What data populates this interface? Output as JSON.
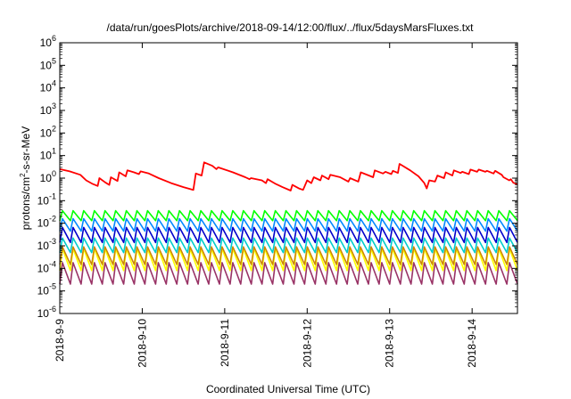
{
  "chart_data": {
    "type": "line",
    "title": "/data/run/goesPlots/archive/2018-09-14/12:00/flux/../flux/5daysMarsFluxes.txt",
    "xlabel": "Coordinated Universal Time (UTC)",
    "ylabel_main": "protons/cm",
    "ylabel_sup": "2",
    "ylabel_rest": "-s-sr-MeV",
    "ylabel": "protons/cm2-s-sr-MeV",
    "yscale": "log",
    "ylim": [
      1e-06,
      1000000.0
    ],
    "yticks": [
      {
        "base": "10",
        "exp": "-6",
        "value": 1e-06
      },
      {
        "base": "10",
        "exp": "-5",
        "value": 1e-05
      },
      {
        "base": "10",
        "exp": "-4",
        "value": 0.0001
      },
      {
        "base": "10",
        "exp": "-3",
        "value": 0.001
      },
      {
        "base": "10",
        "exp": "-2",
        "value": 0.01
      },
      {
        "base": "10",
        "exp": "-1",
        "value": 0.1
      },
      {
        "base": "10",
        "exp": "0",
        "value": 1
      },
      {
        "base": "10",
        "exp": "1",
        "value": 10
      },
      {
        "base": "10",
        "exp": "2",
        "value": 100
      },
      {
        "base": "10",
        "exp": "3",
        "value": 1000
      },
      {
        "base": "10",
        "exp": "4",
        "value": 10000
      },
      {
        "base": "10",
        "exp": "5",
        "value": 100000
      },
      {
        "base": "10",
        "exp": "6",
        "value": 1000000
      }
    ],
    "xlim_days": [
      0,
      5.55
    ],
    "xticks": [
      {
        "label": "2018-9-9",
        "day": 0
      },
      {
        "label": "2018-9-10",
        "day": 1
      },
      {
        "label": "2018-9-11",
        "day": 2
      },
      {
        "label": "2018-9-12",
        "day": 3
      },
      {
        "label": "2018-9-13",
        "day": 4
      },
      {
        "label": "2018-9-14",
        "day": 5
      }
    ],
    "grid": false,
    "legend": "none",
    "series": [
      {
        "color": "#ff0000",
        "points": [
          [
            0.0,
            2.5
          ],
          [
            0.12,
            2.0
          ],
          [
            0.25,
            1.4
          ],
          [
            0.32,
            0.8
          ],
          [
            0.4,
            0.55
          ],
          [
            0.46,
            0.45
          ],
          [
            0.48,
            1.0
          ],
          [
            0.55,
            0.65
          ],
          [
            0.6,
            0.5
          ],
          [
            0.62,
            1.1
          ],
          [
            0.7,
            0.75
          ],
          [
            0.72,
            1.8
          ],
          [
            0.8,
            1.2
          ],
          [
            0.82,
            2.2
          ],
          [
            0.9,
            1.8
          ],
          [
            0.96,
            1.5
          ],
          [
            0.98,
            2.0
          ],
          [
            1.08,
            1.6
          ],
          [
            1.2,
            1.0
          ],
          [
            1.35,
            0.6
          ],
          [
            1.5,
            0.4
          ],
          [
            1.62,
            0.3
          ],
          [
            1.65,
            1.6
          ],
          [
            1.72,
            1.3
          ],
          [
            1.75,
            5.0
          ],
          [
            1.85,
            3.5
          ],
          [
            1.9,
            2.5
          ],
          [
            1.92,
            3.0
          ],
          [
            2.1,
            1.8
          ],
          [
            2.25,
            1.1
          ],
          [
            2.3,
            0.9
          ],
          [
            2.32,
            1.0
          ],
          [
            2.45,
            0.8
          ],
          [
            2.5,
            0.6
          ],
          [
            2.52,
            0.9
          ],
          [
            2.62,
            0.55
          ],
          [
            2.7,
            0.4
          ],
          [
            2.8,
            0.28
          ],
          [
            2.82,
            0.5
          ],
          [
            2.9,
            0.35
          ],
          [
            2.95,
            0.3
          ],
          [
            3.0,
            0.8
          ],
          [
            3.05,
            0.6
          ],
          [
            3.08,
            1.1
          ],
          [
            3.16,
            0.8
          ],
          [
            3.18,
            1.3
          ],
          [
            3.26,
            0.9
          ],
          [
            3.28,
            1.4
          ],
          [
            3.4,
            1.1
          ],
          [
            3.5,
            0.7
          ],
          [
            3.52,
            1.0
          ],
          [
            3.62,
            0.7
          ],
          [
            3.65,
            1.8
          ],
          [
            3.75,
            1.3
          ],
          [
            3.8,
            1.1
          ],
          [
            3.82,
            2.2
          ],
          [
            3.92,
            1.6
          ],
          [
            3.95,
            1.9
          ],
          [
            4.02,
            1.5
          ],
          [
            4.04,
            2.1
          ],
          [
            4.1,
            1.7
          ],
          [
            4.12,
            4.3
          ],
          [
            4.25,
            2.2
          ],
          [
            4.35,
            1.2
          ],
          [
            4.42,
            0.6
          ],
          [
            4.45,
            0.35
          ],
          [
            4.48,
            0.8
          ],
          [
            4.55,
            0.7
          ],
          [
            4.58,
            1.3
          ],
          [
            4.66,
            1.0
          ],
          [
            4.68,
            1.8
          ],
          [
            4.76,
            1.3
          ],
          [
            4.78,
            2.2
          ],
          [
            4.86,
            1.7
          ],
          [
            4.88,
            1.9
          ],
          [
            4.96,
            1.5
          ],
          [
            4.98,
            2.4
          ],
          [
            5.06,
            1.9
          ],
          [
            5.08,
            2.4
          ],
          [
            5.16,
            1.9
          ],
          [
            5.18,
            2.1
          ],
          [
            5.26,
            1.6
          ],
          [
            5.28,
            2.1
          ],
          [
            5.36,
            1.4
          ],
          [
            5.38,
            1.1
          ],
          [
            5.45,
            0.8
          ],
          [
            5.47,
            0.9
          ],
          [
            5.5,
            0.62
          ],
          [
            5.55,
            0.55
          ]
        ]
      },
      {
        "color": "#00ff00",
        "spikes": {
          "count": 43,
          "lo": 0.013,
          "hi": 0.036
        }
      },
      {
        "color": "#0088ff",
        "spikes": {
          "count": 43,
          "lo": 0.0045,
          "hi": 0.016
        }
      },
      {
        "color": "#0000cc",
        "spikes": {
          "count": 43,
          "lo": 0.0014,
          "hi": 0.0065
        }
      },
      {
        "color": "#00cccc",
        "spikes": {
          "count": 43,
          "lo": 0.0005,
          "hi": 0.0022
        }
      },
      {
        "color": "#cc8800",
        "spikes": {
          "count": 43,
          "lo": 0.00015,
          "hi": 0.0009
        }
      },
      {
        "color": "#ffff00",
        "spikes": {
          "count": 43,
          "lo": 8e-05,
          "hi": 0.00075
        }
      },
      {
        "color": "#993366",
        "spikes": {
          "count": 43,
          "lo": 2e-05,
          "hi": 0.00018
        }
      }
    ]
  }
}
